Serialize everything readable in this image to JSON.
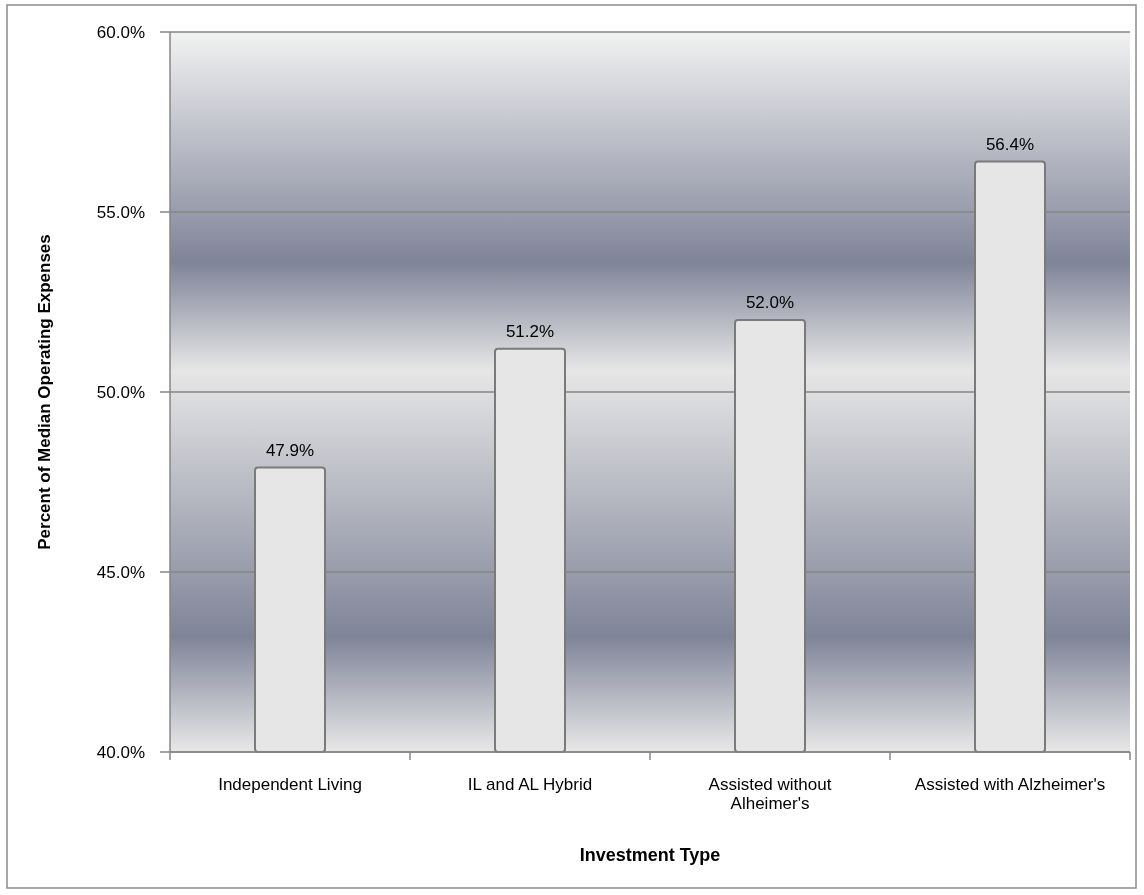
{
  "chart_data": {
    "type": "bar",
    "xlabel": "Investment Type",
    "ylabel": "Percent of Median Operating Expenses",
    "categories": [
      "Independent Living",
      "IL and AL Hybrid",
      "Assisted without Alheimer's",
      "Assisted with Alzheimer's"
    ],
    "values": [
      47.9,
      51.2,
      52.0,
      56.4
    ],
    "color": "#e6e6e6",
    "value_labels": [
      "47.9%",
      "51.2%",
      "52.0%",
      "56.4%"
    ],
    "ylim": [
      40,
      60
    ],
    "yticks": [
      {
        "value": 40,
        "label": "40.0%"
      },
      {
        "value": 45,
        "label": "45.0%"
      },
      {
        "value": 50,
        "label": "50.0%"
      },
      {
        "value": 55,
        "label": "55.0%"
      },
      {
        "value": 60,
        "label": "60.0%"
      }
    ],
    "grid": "y"
  }
}
